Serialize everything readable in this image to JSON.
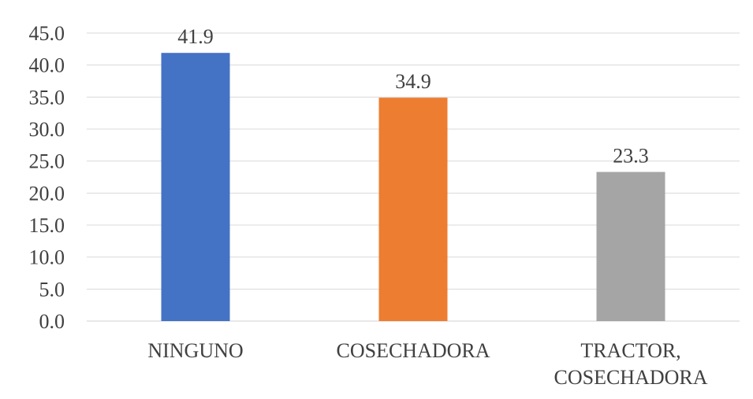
{
  "chart_data": {
    "type": "bar",
    "categories": [
      "NINGUNO",
      "COSECHADORA",
      "TRACTOR, COSECHADORA"
    ],
    "category_lines": [
      [
        "NINGUNO"
      ],
      [
        "COSECHADORA"
      ],
      [
        "TRACTOR,",
        "COSECHADORA"
      ]
    ],
    "values": [
      41.9,
      34.9,
      23.3
    ],
    "value_labels": [
      "41.9",
      "34.9",
      "23.3"
    ],
    "bar_colors": [
      "#4472C4",
      "#ED7D31",
      "#A5A5A5"
    ],
    "ylim": [
      0,
      45
    ],
    "yticks": [
      "0.0",
      "5.0",
      "10.0",
      "15.0",
      "20.0",
      "25.0",
      "30.0",
      "35.0",
      "40.0",
      "45.0"
    ],
    "ytick_values": [
      0,
      5,
      10,
      15,
      20,
      25,
      30,
      35,
      40,
      45
    ],
    "grid": true,
    "gridline_color": "#D9D9D9",
    "title": "",
    "xlabel": "",
    "ylabel": ""
  }
}
